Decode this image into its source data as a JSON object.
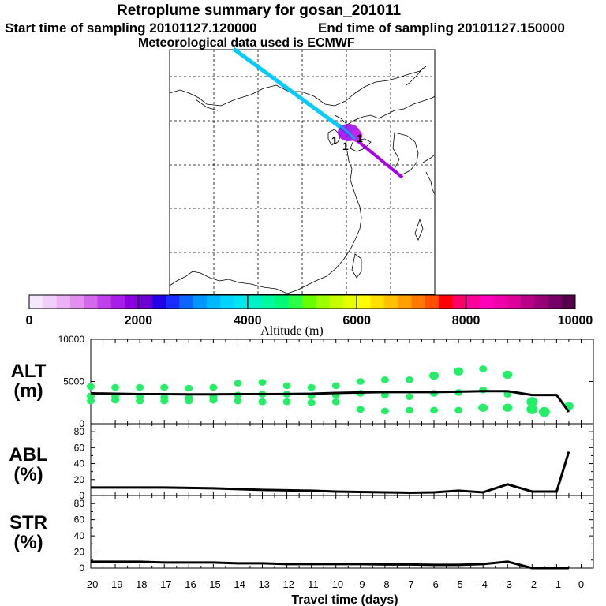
{
  "header": {
    "title": "Retroplume summary for gosan_201011",
    "start_label": "Start time of sampling",
    "start_value": "20101127.120000",
    "end_label": "End time of sampling",
    "end_value": "20101127.150000",
    "met": "Meteorological data used is ECMWF"
  },
  "map": {
    "region": "East Asia",
    "plume_colors": [
      "#00ccff",
      "#9900ee",
      "#cc00ff"
    ],
    "markers": [
      "1",
      "1",
      "1"
    ]
  },
  "colorbar": {
    "title": "Altitude (m)",
    "ticks": [
      "0",
      "2000",
      "4000",
      "6000",
      "8000",
      "10000"
    ],
    "colors": [
      "#f6e8fc",
      "#f0d0f8",
      "#eab2f4",
      "#e290f0",
      "#d468ec",
      "#c040ea",
      "#a81ee6",
      "#8a00e0",
      "#6e00d4",
      "#2400e8",
      "#1a2cff",
      "#0a66ff",
      "#0096ff",
      "#00b8ff",
      "#00d4ff",
      "#00e6f0",
      "#00f0c8",
      "#00f8a0",
      "#00fa78",
      "#2cff4a",
      "#66ff00",
      "#9cff00",
      "#c8ff00",
      "#e6ff00",
      "#ffff00",
      "#ffe000",
      "#ffc000",
      "#ffa000",
      "#ff7800",
      "#ff5000",
      "#ff0000",
      "#ff0066",
      "#ff0099",
      "#ff00bb",
      "#ee00aa",
      "#dd0099",
      "#bb0088",
      "#990077",
      "#770066",
      "#55004a"
    ]
  },
  "panels": {
    "alt_label": "ALT",
    "alt_unit": "(m)",
    "abl_label": "ABL",
    "abl_unit": "(%)",
    "str_label": "STR",
    "str_unit": "(%)"
  },
  "chart_data": [
    {
      "type": "line+scatter",
      "name": "ALT",
      "ylabel": "ALT (m)",
      "ylim": [
        0,
        10000
      ],
      "yticks": [
        "10000",
        "5000",
        "0"
      ],
      "x": [
        -20,
        -19,
        -18,
        -17,
        -16,
        -15,
        -14,
        -13,
        -12,
        -11,
        -10,
        -9,
        -8,
        -7,
        -6,
        -5,
        -4,
        -3,
        -2,
        -1,
        -0.5
      ],
      "line": [
        3600,
        3550,
        3500,
        3500,
        3480,
        3480,
        3500,
        3500,
        3520,
        3550,
        3650,
        3700,
        3750,
        3750,
        3750,
        3800,
        3850,
        3850,
        3400,
        3400,
        1400
      ],
      "scatter": {
        "color": "#22ee66",
        "x": [
          -20,
          -20,
          -20,
          -19,
          -19,
          -19,
          -18,
          -18,
          -18,
          -17,
          -17,
          -17,
          -16,
          -16,
          -16,
          -15,
          -15,
          -15,
          -14,
          -14,
          -14,
          -13,
          -13,
          -13,
          -12,
          -12,
          -12,
          -11,
          -11,
          -11,
          -10,
          -10,
          -10,
          -9,
          -9,
          -9,
          -8,
          -8,
          -8,
          -7,
          -7,
          -7,
          -6,
          -6,
          -6,
          -5,
          -5,
          -5,
          -4,
          -4,
          -4,
          -3,
          -3,
          -3,
          -2,
          -2,
          -1.5,
          -0.5
        ],
        "y": [
          4400,
          3300,
          2700,
          4300,
          3300,
          2800,
          4300,
          3200,
          2700,
          4300,
          3100,
          2700,
          4200,
          3100,
          2700,
          4300,
          3200,
          2800,
          4800,
          3400,
          2700,
          4900,
          3500,
          2600,
          4500,
          3500,
          2600,
          4300,
          3300,
          2500,
          4500,
          3400,
          2600,
          5000,
          3600,
          1700,
          5200,
          3400,
          1500,
          5200,
          3200,
          1600,
          5700,
          3600,
          1600,
          6200,
          3700,
          1600,
          6500,
          4000,
          1900,
          5800,
          3500,
          1900,
          2600,
          1700,
          1400,
          2100
        ],
        "size": [
          2,
          2,
          2,
          2,
          2,
          2,
          2,
          2,
          2,
          2,
          2,
          2,
          2,
          2,
          2,
          2,
          2,
          2,
          2,
          2,
          2,
          2,
          2,
          2,
          2,
          2,
          2,
          2,
          2,
          2,
          2,
          2,
          2,
          2,
          2,
          2,
          2,
          2,
          2,
          2,
          2,
          2,
          3,
          2,
          2,
          3,
          2,
          2,
          2,
          2,
          3,
          3,
          2,
          3,
          4,
          4,
          4,
          3
        ]
      }
    },
    {
      "type": "line",
      "name": "ABL",
      "ylabel": "ABL (%)",
      "ylim": [
        0,
        90
      ],
      "yticks": [
        "80",
        "60",
        "40",
        "20",
        "0"
      ],
      "x": [
        -20,
        -19,
        -18,
        -17,
        -16,
        -15,
        -14,
        -13,
        -12,
        -11,
        -10,
        -9,
        -8,
        -7,
        -6,
        -5,
        -4,
        -3,
        -2,
        -1,
        -0.5
      ],
      "values": [
        10,
        10,
        10,
        10,
        9.5,
        9,
        8,
        7,
        6.5,
        6,
        5,
        4.5,
        4,
        3.5,
        4,
        6,
        4,
        14,
        5,
        5,
        55
      ]
    },
    {
      "type": "line",
      "name": "STR",
      "ylabel": "STR (%)",
      "ylim": [
        0,
        90
      ],
      "yticks": [
        "80",
        "60",
        "40",
        "20",
        "0"
      ],
      "x": [
        -20,
        -19,
        -18,
        -17,
        -16,
        -15,
        -14,
        -13,
        -12,
        -11,
        -10,
        -9,
        -8,
        -7,
        -6,
        -5,
        -4,
        -3,
        -2,
        -1,
        -0.5
      ],
      "values": [
        8,
        8,
        8,
        7,
        7,
        7,
        6,
        6,
        5,
        5,
        5,
        5,
        4.5,
        4.5,
        4,
        4,
        5,
        8,
        0,
        0,
        0
      ]
    }
  ],
  "xaxis": {
    "label": "Travel time (days)",
    "ticks": [
      "-20",
      "-19",
      "-18",
      "-17",
      "-16",
      "-15",
      "-14",
      "-13",
      "-12",
      "-11",
      "-10",
      "-9",
      "-8",
      "-7",
      "-6",
      "-5",
      "-4",
      "-3",
      "-2",
      "-1",
      "0"
    ]
  }
}
